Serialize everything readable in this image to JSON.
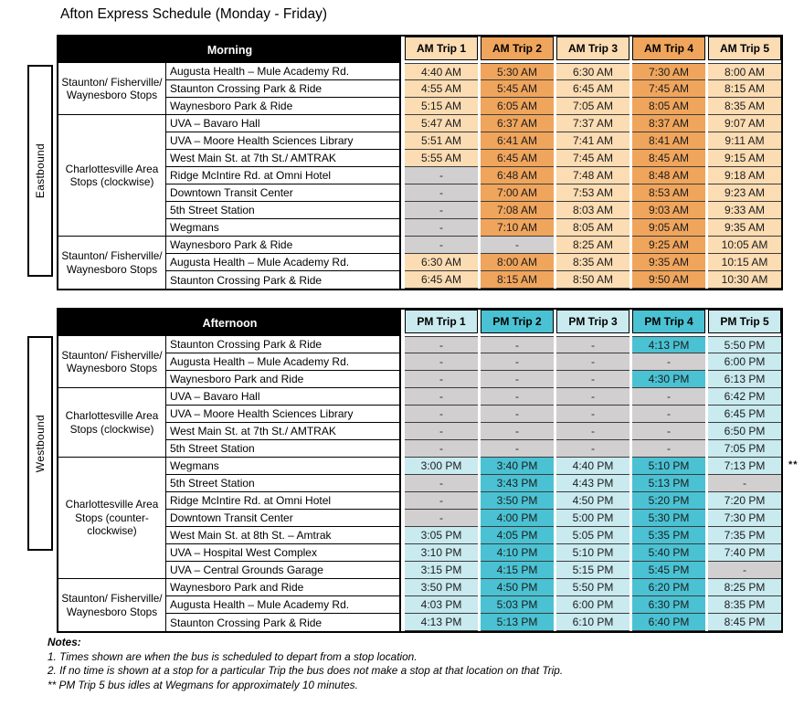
{
  "title": "Afton Express Schedule (Monday - Friday)",
  "colors": {
    "header_band": "#000000",
    "header_text": "#FFFFFF",
    "am_light": "#FBDCB3",
    "am_dark": "#F0A55C",
    "pm_light": "#C9EAEF",
    "pm_dark": "#4AC2D3",
    "no_stop_gray": "#D1CFCF"
  },
  "tables": [
    {
      "direction": "Eastbound",
      "period_label": "Morning",
      "trip_headers": [
        "AM Trip 1",
        "AM Trip 2",
        "AM Trip 3",
        "AM Trip 4",
        "AM Trip 5"
      ],
      "groups": [
        {
          "label": "Staunton/ Fisherville/ Waynesboro Stops",
          "rows": 3
        },
        {
          "label": "Charlottesville Area Stops (clockwise)",
          "rows": 7
        },
        {
          "label": "Staunton/ Fisherville/ Waynesboro Stops",
          "rows": 3
        }
      ],
      "rows": [
        {
          "stop": "Augusta Health – Mule Academy Rd.",
          "times": [
            "4:40 AM",
            "5:30 AM",
            "6:30 AM",
            "7:30 AM",
            "8:00 AM"
          ]
        },
        {
          "stop": "Staunton Crossing Park & Ride",
          "times": [
            "4:55 AM",
            "5:45 AM",
            "6:45 AM",
            "7:45 AM",
            "8:15 AM"
          ]
        },
        {
          "stop": "Waynesboro Park & Ride",
          "times": [
            "5:15 AM",
            "6:05 AM",
            "7:05 AM",
            "8:05 AM",
            "8:35 AM"
          ]
        },
        {
          "stop": "UVA – Bavaro Hall",
          "times": [
            "5:47 AM",
            "6:37 AM",
            "7:37 AM",
            "8:37 AM",
            "9:07 AM"
          ]
        },
        {
          "stop": "UVA – Moore Health Sciences Library",
          "times": [
            "5:51 AM",
            "6:41 AM",
            "7:41 AM",
            "8:41 AM",
            "9:11 AM"
          ]
        },
        {
          "stop": "West Main St. at 7th St./ AMTRAK",
          "times": [
            "5:55 AM",
            "6:45 AM",
            "7:45 AM",
            "8:45 AM",
            "9:15 AM"
          ]
        },
        {
          "stop": "Ridge McIntire Rd. at Omni Hotel",
          "times": [
            "-",
            "6:48 AM",
            "7:48 AM",
            "8:48 AM",
            "9:18 AM"
          ]
        },
        {
          "stop": "Downtown Transit Center",
          "times": [
            "-",
            "7:00 AM",
            "7:53 AM",
            "8:53 AM",
            "9:23 AM"
          ]
        },
        {
          "stop": "5th Street Station",
          "times": [
            "-",
            "7:08 AM",
            "8:03 AM",
            "9:03 AM",
            "9:33 AM"
          ]
        },
        {
          "stop": "Wegmans",
          "times": [
            "-",
            "7:10 AM",
            "8:05 AM",
            "9:05 AM",
            "9:35 AM"
          ]
        },
        {
          "stop": "Waynesboro Park & Ride",
          "times": [
            "-",
            "-",
            "8:25 AM",
            "9:25 AM",
            "10:05 AM"
          ]
        },
        {
          "stop": "Augusta Health – Mule Academy Rd.",
          "times": [
            "6:30 AM",
            "8:00 AM",
            "8:35 AM",
            "9:35 AM",
            "10:15 AM"
          ]
        },
        {
          "stop": "Staunton Crossing Park & Ride",
          "times": [
            "6:45 AM",
            "8:15 AM",
            "8:50 AM",
            "9:50 AM",
            "10:30 AM"
          ]
        }
      ]
    },
    {
      "direction": "Westbound",
      "period_label": "Afternoon",
      "trip_headers": [
        "PM Trip 1",
        "PM Trip 2",
        "PM Trip 3",
        "PM Trip 4",
        "PM Trip 5"
      ],
      "groups": [
        {
          "label": "Staunton/ Fisherville/ Waynesboro Stops",
          "rows": 3
        },
        {
          "label": "Charlottesville Area Stops (clockwise)",
          "rows": 4
        },
        {
          "label": "Charlottesville Area Stops (counter-clockwise)",
          "rows": 7
        },
        {
          "label": "Staunton/ Fisherville/ Waynesboro Stops",
          "rows": 3
        }
      ],
      "rows": [
        {
          "stop": "Staunton Crossing Park & Ride",
          "times": [
            "-",
            "-",
            "-",
            "4:13 PM",
            "5:50 PM"
          ]
        },
        {
          "stop": "Augusta Health – Mule Academy Rd.",
          "times": [
            "-",
            "-",
            "-",
            "-",
            "6:00 PM"
          ]
        },
        {
          "stop": "Waynesboro Park and Ride",
          "times": [
            "-",
            "-",
            "-",
            "4:30 PM",
            "6:13 PM"
          ]
        },
        {
          "stop": "UVA – Bavaro Hall",
          "times": [
            "-",
            "-",
            "-",
            "-",
            "6:42 PM"
          ]
        },
        {
          "stop": "UVA – Moore Health Sciences Library",
          "times": [
            "-",
            "-",
            "-",
            "-",
            "6:45 PM"
          ]
        },
        {
          "stop": "West Main St. at 7th St./ AMTRAK",
          "times": [
            "-",
            "-",
            "-",
            "-",
            "6:50 PM"
          ]
        },
        {
          "stop": "5th Street Station",
          "times": [
            "-",
            "-",
            "-",
            "-",
            "7:05 PM"
          ]
        },
        {
          "stop": "Wegmans",
          "times": [
            "3:00 PM",
            "3:40 PM",
            "4:40 PM",
            "5:10 PM",
            "7:13 PM"
          ]
        },
        {
          "stop": "5th Street Station",
          "times": [
            "-",
            "3:43 PM",
            "4:43 PM",
            "5:13 PM",
            "-"
          ]
        },
        {
          "stop": "Ridge McIntire Rd. at Omni Hotel",
          "times": [
            "-",
            "3:50 PM",
            "4:50 PM",
            "5:20 PM",
            "7:20 PM"
          ]
        },
        {
          "stop": "Downtown Transit Center",
          "times": [
            "-",
            "4:00 PM",
            "5:00 PM",
            "5:30 PM",
            "7:30 PM"
          ]
        },
        {
          "stop": "West Main St. at 8th St. – Amtrak",
          "times": [
            "3:05 PM",
            "4:05 PM",
            "5:05 PM",
            "5:35 PM",
            "7:35 PM"
          ]
        },
        {
          "stop": "UVA – Hospital West Complex",
          "times": [
            "3:10 PM",
            "4:10 PM",
            "5:10 PM",
            "5:40 PM",
            "7:40 PM"
          ]
        },
        {
          "stop": "UVA – Central Grounds Garage",
          "times": [
            "3:15 PM",
            "4:15 PM",
            "5:15 PM",
            "5:45 PM",
            "-"
          ]
        },
        {
          "stop": "Waynesboro Park and Ride",
          "times": [
            "3:50 PM",
            "4:50 PM",
            "5:50 PM",
            "6:20 PM",
            "8:25 PM"
          ]
        },
        {
          "stop": "Augusta Health – Mule Academy Rd.",
          "times": [
            "4:03 PM",
            "5:03 PM",
            "6:00 PM",
            "6:30 PM",
            "8:35 PM"
          ]
        },
        {
          "stop": "Staunton Crossing Park & Ride",
          "times": [
            "4:13 PM",
            "5:13 PM",
            "6:10 PM",
            "6:40 PM",
            "8:45 PM"
          ]
        }
      ],
      "footnote": {
        "marker": "**",
        "row_index": 8
      }
    }
  ],
  "notes": {
    "heading": "Notes:",
    "lines": [
      "1. Times shown are when the bus is scheduled to depart from a stop location.",
      "2. If no time is shown at a stop for a particular Trip the bus does not make a stop at that location on that Trip.",
      "** PM Trip 5 bus idles at Wegmans for approximately 10 minutes."
    ]
  }
}
